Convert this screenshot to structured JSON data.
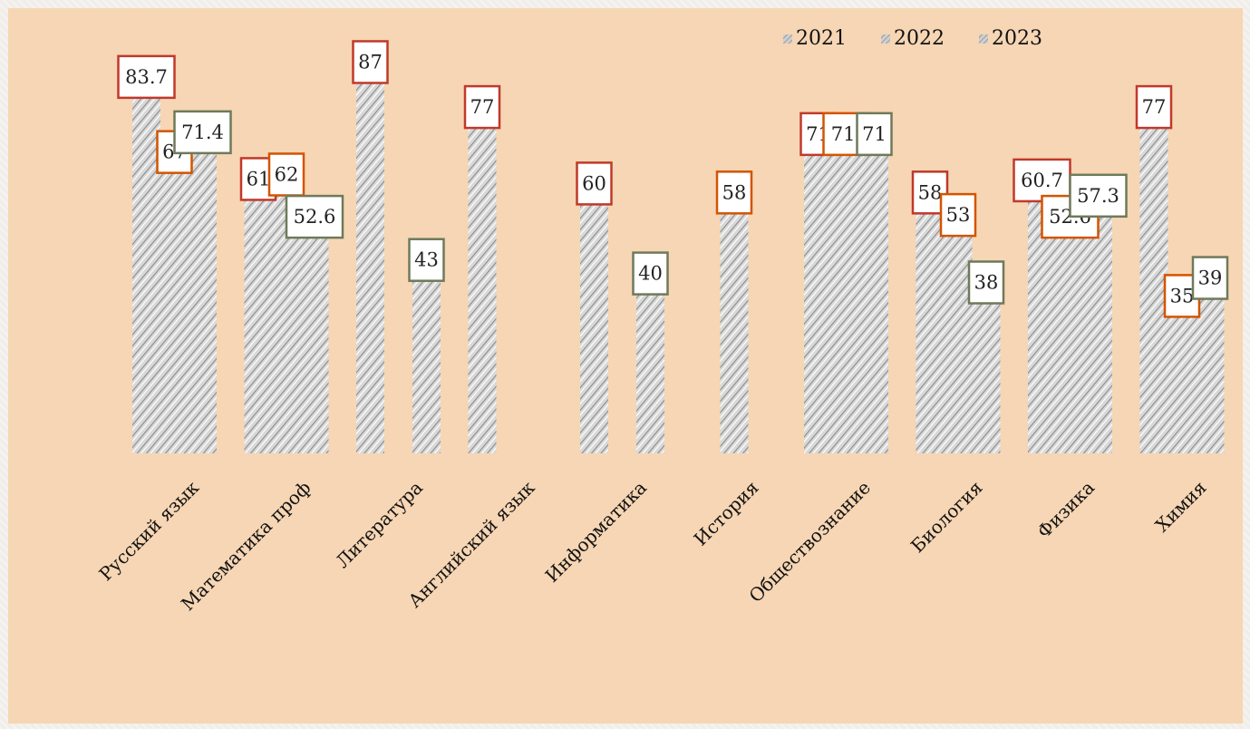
{
  "chart_data": {
    "type": "bar",
    "categories": [
      "Русский язык",
      "Математика проф",
      "Литература",
      "Английский язык",
      "Информатика",
      "История",
      "Обществознание",
      "Биология",
      "Физика",
      "Химия"
    ],
    "series": [
      {
        "name": "2021",
        "values": [
          83.7,
          61,
          87,
          77,
          60,
          null,
          71,
          58,
          60.7,
          77
        ],
        "labels": [
          "83.7",
          "61",
          "87",
          "77",
          "60",
          "",
          "71",
          "58",
          "60.7",
          "77"
        ],
        "color": "#c0392b"
      },
      {
        "name": "2022",
        "values": [
          67,
          62,
          null,
          null,
          null,
          58,
          71,
          53,
          52.6,
          35
        ],
        "labels": [
          "67",
          "62",
          "",
          "",
          "",
          "58",
          "71.",
          "53",
          "52.6",
          "35"
        ],
        "color": "#d35400"
      },
      {
        "name": "2023",
        "values": [
          71.4,
          52.6,
          43,
          null,
          40,
          null,
          71,
          38,
          57.3,
          39
        ],
        "labels": [
          "71.4",
          "52.6",
          "43",
          "",
          "40",
          "",
          "71",
          "38",
          "57.3",
          "39"
        ],
        "color": "#6e7a5a"
      }
    ],
    "ylim": [
      0,
      100
    ],
    "grid": false,
    "legend_position": "top-right",
    "background_color": "#f6d6b4",
    "bar_pattern": "diagonal-hatch"
  }
}
